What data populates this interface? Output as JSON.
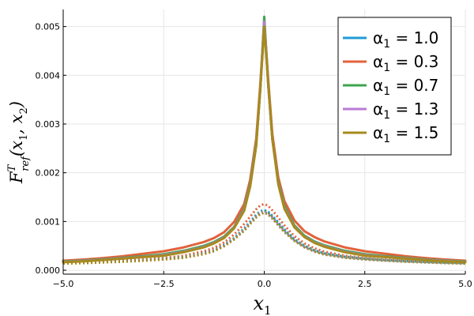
{
  "chart_data": {
    "type": "line",
    "xlabel": "x1",
    "ylabel": "F^T_ref(x1, x2)",
    "xlim": [
      -5,
      5
    ],
    "ylim": [
      -8e-05,
      0.00535
    ],
    "x_ticks": [
      -5,
      -2.5,
      0,
      2.5,
      5
    ],
    "x_tick_labels": [
      "−5.0",
      "−2.5",
      "0.0",
      "2.5",
      "5.0"
    ],
    "y_ticks": [
      0,
      0.001,
      0.002,
      0.003,
      0.004,
      0.005
    ],
    "y_tick_labels": [
      "0.000",
      "0.001",
      "0.002",
      "0.003",
      "0.004",
      "0.005"
    ],
    "grid": true,
    "legend_position": "top-right",
    "x": [
      -5,
      -4.5,
      -4,
      -3.5,
      -3,
      -2.5,
      -2,
      -1.5,
      -1.25,
      -1,
      -0.75,
      -0.5,
      -0.35,
      -0.2,
      -0.1,
      0,
      0.1,
      0.2,
      0.35,
      0.5,
      0.75,
      1,
      1.25,
      1.5,
      2,
      2.5,
      3,
      3.5,
      4,
      4.5,
      5
    ],
    "series": [
      {
        "name": "α1 = 1.0",
        "color": "#1f9bd6",
        "solid": [
          0.000175,
          0.000195,
          0.00022,
          0.00025,
          0.00028,
          0.00032,
          0.00039,
          0.00049,
          0.00057,
          0.00068,
          0.00088,
          0.00125,
          0.00175,
          0.0026,
          0.0037,
          0.0051,
          0.0038,
          0.0027,
          0.0018,
          0.0013,
          0.0009,
          0.0007,
          0.00058,
          0.0005,
          0.00039,
          0.00032,
          0.00028,
          0.00025,
          0.00022,
          0.00019,
          0.000175
        ],
        "dotted": [
          0.00015,
          0.00016,
          0.000175,
          0.00019,
          0.00021,
          0.00024,
          0.00028,
          0.00036,
          0.00042,
          0.00052,
          0.00066,
          0.00086,
          0.001,
          0.00114,
          0.00121,
          0.00124,
          0.0012,
          0.00112,
          0.00098,
          0.00084,
          0.00064,
          0.0005,
          0.00041,
          0.00035,
          0.00028,
          0.00024,
          0.00021,
          0.00019,
          0.000175,
          0.00016,
          0.00015
        ]
      },
      {
        "name": "α1 = 0.3",
        "color": "#e2623c",
        "solid": [
          0.000195,
          0.00022,
          0.00025,
          0.00029,
          0.00034,
          0.00039,
          0.00047,
          0.00058,
          0.00066,
          0.00078,
          0.00099,
          0.00136,
          0.00186,
          0.0027,
          0.0038,
          0.0051,
          0.0039,
          0.0028,
          0.0019,
          0.00142,
          0.00102,
          0.0008,
          0.00068,
          0.00059,
          0.00047,
          0.00039,
          0.00034,
          0.00029,
          0.00025,
          0.00022,
          0.000195
        ],
        "dotted": [
          0.00016,
          0.00017,
          0.000185,
          0.0002,
          0.00022,
          0.00025,
          0.0003,
          0.00039,
          0.00046,
          0.00057,
          0.00073,
          0.00095,
          0.0011,
          0.00125,
          0.00133,
          0.00136,
          0.00132,
          0.00123,
          0.00108,
          0.00092,
          0.0007,
          0.00055,
          0.00045,
          0.00038,
          0.0003,
          0.00025,
          0.00022,
          0.0002,
          0.000185,
          0.00017,
          0.00016
        ]
      },
      {
        "name": "α1 = 0.7",
        "color": "#3ea44e",
        "solid": [
          0.00018,
          0.0002,
          0.000225,
          0.000255,
          0.00029,
          0.00033,
          0.0004,
          0.0005,
          0.00058,
          0.00069,
          0.00089,
          0.00127,
          0.00178,
          0.00262,
          0.0037,
          0.0052,
          0.0038,
          0.0027,
          0.00182,
          0.00132,
          0.00092,
          0.00071,
          0.00059,
          0.00051,
          0.0004,
          0.00033,
          0.00029,
          0.000255,
          0.000225,
          0.0002,
          0.00018
        ],
        "dotted": [
          0.000145,
          0.000155,
          0.00017,
          0.000185,
          0.000205,
          0.000235,
          0.00027,
          0.00035,
          0.00041,
          0.00051,
          0.00065,
          0.00084,
          0.00098,
          0.00112,
          0.00119,
          0.00122,
          0.00118,
          0.0011,
          0.00096,
          0.00082,
          0.00062,
          0.00049,
          0.0004,
          0.00034,
          0.00027,
          0.000235,
          0.000205,
          0.000185,
          0.00017,
          0.000155,
          0.000145
        ]
      },
      {
        "name": "α1 = 1.3",
        "color": "#b97bd6",
        "solid": [
          0.00017,
          0.00019,
          0.000215,
          0.000245,
          0.000275,
          0.00031,
          0.00038,
          0.00048,
          0.00056,
          0.00067,
          0.00087,
          0.00124,
          0.00174,
          0.00258,
          0.0037,
          0.0051,
          0.0038,
          0.0027,
          0.00178,
          0.00128,
          0.00089,
          0.00069,
          0.00057,
          0.00049,
          0.00038,
          0.00031,
          0.000275,
          0.000245,
          0.000215,
          0.00019,
          0.00017
        ],
        "dotted": [
          0.00014,
          0.00015,
          0.000165,
          0.00018,
          0.0002,
          0.000225,
          0.00026,
          0.00034,
          0.0004,
          0.0005,
          0.00064,
          0.00083,
          0.00097,
          0.0011,
          0.00117,
          0.0012,
          0.00116,
          0.00108,
          0.00094,
          0.0008,
          0.00061,
          0.00048,
          0.00039,
          0.00033,
          0.00026,
          0.000225,
          0.0002,
          0.00018,
          0.000165,
          0.00015,
          0.00014
        ]
      },
      {
        "name": "α1 = 1.5",
        "color": "#a68a1c",
        "solid": [
          0.000165,
          0.000185,
          0.00021,
          0.00024,
          0.00027,
          0.0003,
          0.00037,
          0.00047,
          0.00055,
          0.00066,
          0.00086,
          0.00122,
          0.00172,
          0.00255,
          0.0037,
          0.005,
          0.0038,
          0.0027,
          0.00176,
          0.00126,
          0.00088,
          0.00068,
          0.00056,
          0.00048,
          0.00037,
          0.0003,
          0.00027,
          0.00024,
          0.00021,
          0.000185,
          0.000165
        ],
        "dotted": [
          0.000135,
          0.000145,
          0.00016,
          0.000175,
          0.000195,
          0.00022,
          0.000255,
          0.00033,
          0.00039,
          0.00049,
          0.00063,
          0.00081,
          0.00095,
          0.00108,
          0.00115,
          0.00118,
          0.00114,
          0.00106,
          0.00092,
          0.00078,
          0.0006,
          0.00047,
          0.00038,
          0.00032,
          0.000255,
          0.00022,
          0.000195,
          0.000175,
          0.00016,
          0.000145,
          0.000135
        ]
      }
    ]
  }
}
